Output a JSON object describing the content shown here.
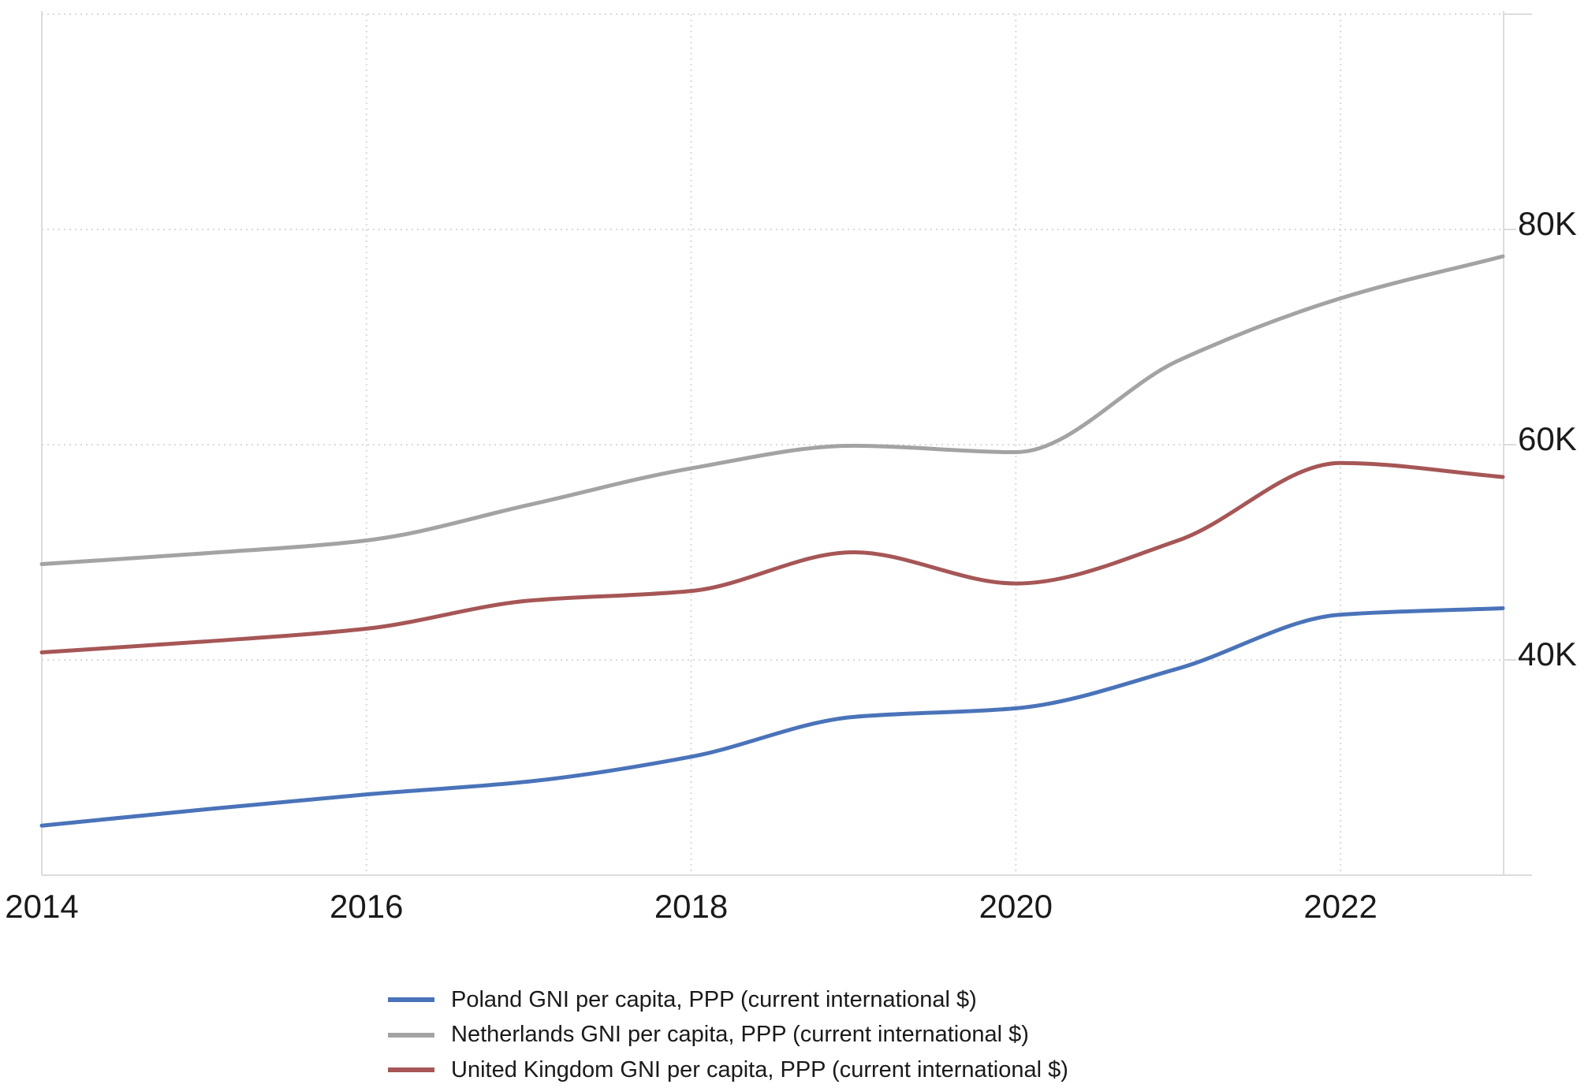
{
  "chart_data": {
    "type": "line",
    "title": "",
    "xlabel": "",
    "ylabel": "",
    "x": [
      2014,
      2015,
      2016,
      2017,
      2018,
      2019,
      2020,
      2021,
      2022,
      2023
    ],
    "xlim": [
      2014,
      2023
    ],
    "ylim": [
      20000,
      100000
    ],
    "x_ticks": [
      2014,
      2016,
      2018,
      2020,
      2022
    ],
    "x_tick_labels": [
      "2014",
      "2016",
      "2018",
      "2020",
      "2022"
    ],
    "y_ticks": [
      40000,
      60000,
      80000,
      100000
    ],
    "y_tick_labels": [
      "40K",
      "60K",
      "80K",
      ""
    ],
    "y_axis_side": "right",
    "grid": true,
    "smooth": true,
    "legend_position": "bottom-center",
    "series": [
      {
        "name": "Poland GNI per capita, PPP (current international $)",
        "color": "#4a73b9",
        "values": [
          24600,
          26100,
          27500,
          28700,
          31000,
          34700,
          35500,
          39200,
          44200,
          44800
        ]
      },
      {
        "name": "Netherlands GNI per capita, PPP (current international $)",
        "color": "#a3a3a3",
        "values": [
          48900,
          49900,
          51100,
          54400,
          57800,
          59900,
          59300,
          67800,
          73600,
          77500
        ]
      },
      {
        "name": "United Kingdom GNI per capita, PPP (current international $)",
        "color": "#a65656",
        "values": [
          40700,
          41700,
          42900,
          45500,
          46400,
          50000,
          47100,
          51100,
          58300,
          57000
        ]
      }
    ]
  }
}
